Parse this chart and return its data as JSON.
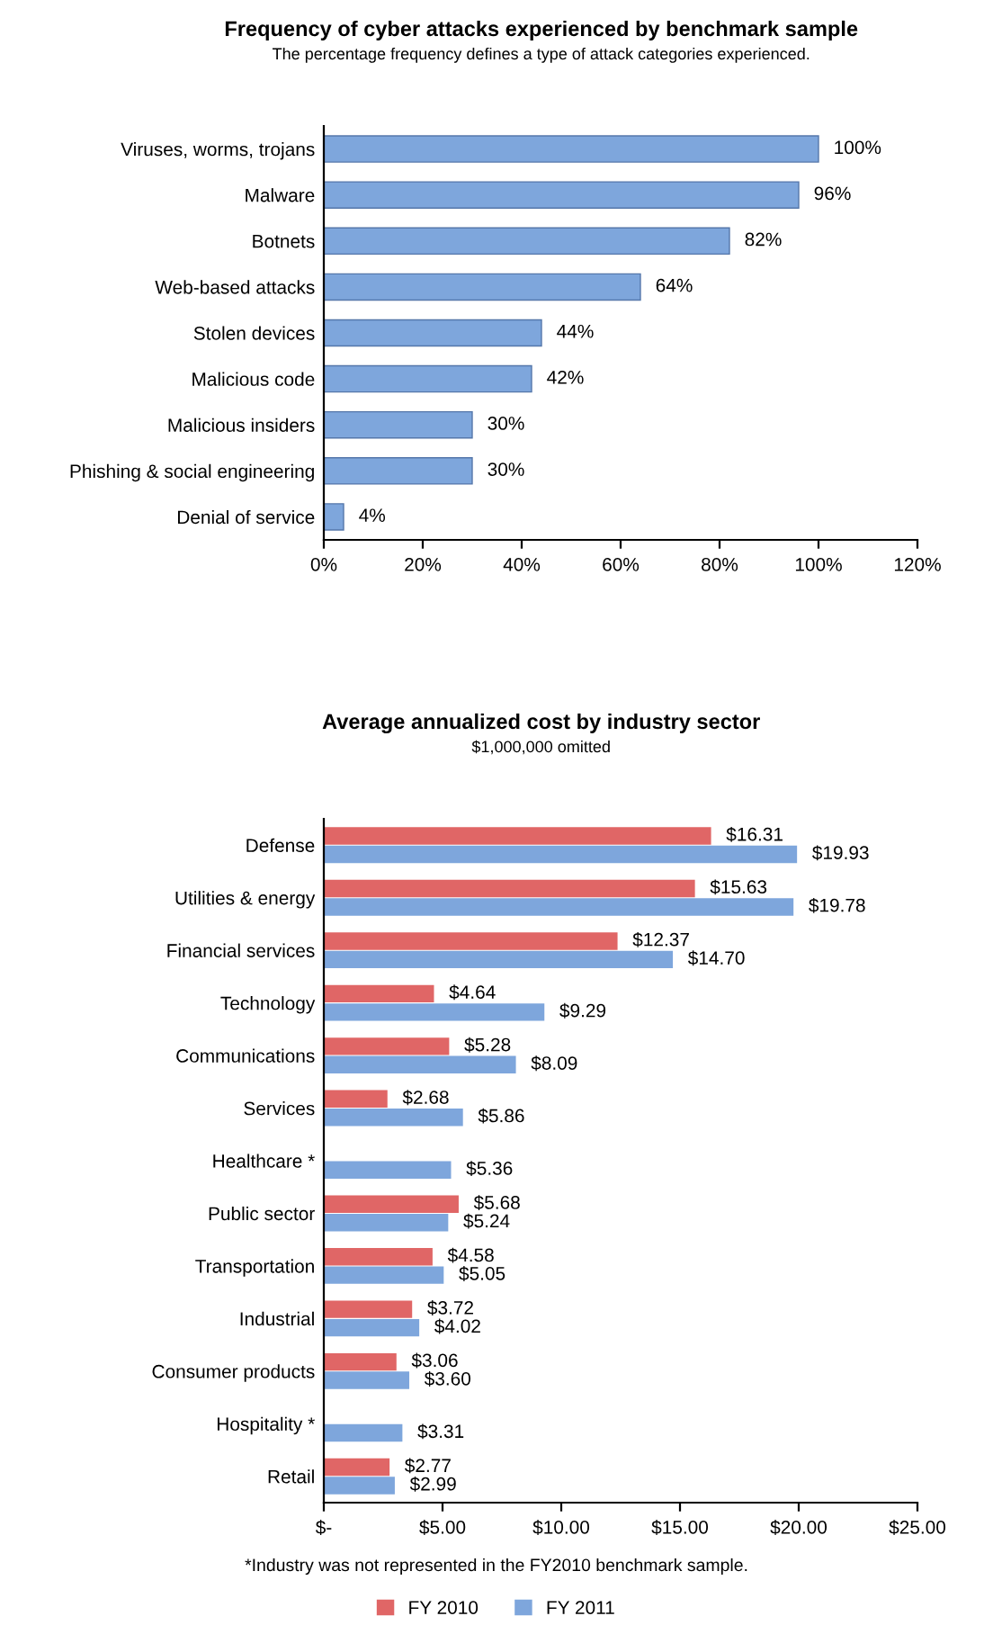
{
  "chart_data": [
    {
      "type": "bar",
      "orientation": "horizontal",
      "title": "Frequency of cyber attacks experienced by benchmark sample",
      "subtitle": "The percentage frequency defines a type of attack categories experienced.",
      "categories": [
        "Viruses, worms, trojans",
        "Malware",
        "Botnets",
        "Web-based attacks",
        "Stolen devices",
        "Malicious code",
        "Malicious insiders",
        "Phishing & social engineering",
        "Denial of service"
      ],
      "values": [
        100,
        96,
        82,
        64,
        44,
        42,
        30,
        30,
        4
      ],
      "color": "#7ea6dc",
      "value_labels": [
        "100%",
        "96%",
        "82%",
        "64%",
        "44%",
        "42%",
        "30%",
        "30%",
        "4%"
      ],
      "xlim": [
        0,
        120
      ],
      "xticks": [
        {
          "value": 0,
          "label": "0%"
        },
        {
          "value": 20,
          "label": "20%"
        },
        {
          "value": 40,
          "label": "40%"
        },
        {
          "value": 60,
          "label": "60%"
        },
        {
          "value": 80,
          "label": "80%"
        },
        {
          "value": 100,
          "label": "100%"
        },
        {
          "value": 120,
          "label": "120%"
        }
      ]
    },
    {
      "type": "bar",
      "orientation": "horizontal",
      "title": "Average annualized cost by industry sector",
      "subtitle": "$1,000,000 omitted",
      "categories": [
        "Defense",
        "Utilities & energy",
        "Financial services",
        "Technology",
        "Communications",
        "Services",
        "Healthcare *",
        "Public sector",
        "Transportation",
        "Industrial",
        "Consumer products",
        "Hospitality *",
        "Retail"
      ],
      "series": [
        {
          "name": "FY 2010",
          "color": "#e06666",
          "values": [
            16.31,
            15.63,
            12.37,
            4.64,
            5.28,
            2.68,
            null,
            5.68,
            4.58,
            3.72,
            3.06,
            null,
            2.77
          ],
          "value_labels": [
            "$16.31",
            "$15.63",
            "$12.37",
            "$4.64",
            "$5.28",
            "$2.68",
            null,
            "$5.68",
            "$4.58",
            "$3.72",
            "$3.06",
            null,
            "$2.77"
          ]
        },
        {
          "name": "FY 2011",
          "color": "#7ea6dc",
          "values": [
            19.93,
            19.78,
            14.7,
            9.29,
            8.09,
            5.86,
            5.36,
            5.24,
            5.05,
            4.02,
            3.6,
            3.31,
            2.99
          ],
          "value_labels": [
            "$19.93",
            "$19.78",
            "$14.70",
            "$9.29",
            "$8.09",
            "$5.86",
            "$5.36",
            "$5.24",
            "$5.05",
            "$4.02",
            "$3.60",
            "$3.31",
            "$2.99"
          ]
        }
      ],
      "xlim": [
        0,
        25
      ],
      "xticks": [
        {
          "value": 0,
          "label": "$-"
        },
        {
          "value": 5,
          "label": "$5.00"
        },
        {
          "value": 10,
          "label": "$10.00"
        },
        {
          "value": 15,
          "label": "$15.00"
        },
        {
          "value": 20,
          "label": "$20.00"
        },
        {
          "value": 25,
          "label": "$25.00"
        }
      ],
      "legend": "bottom",
      "annotations": [
        "*Industry was not represented in the FY2010 benchmark sample."
      ]
    }
  ]
}
